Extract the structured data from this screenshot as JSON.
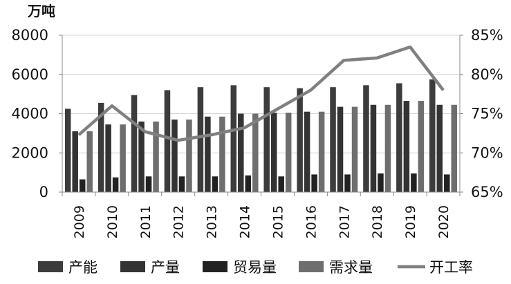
{
  "chart_data": {
    "type": "bar",
    "y_unit_label": "万吨",
    "categories": [
      "2009",
      "2010",
      "2011",
      "2012",
      "2013",
      "2014",
      "2015",
      "2016",
      "2017",
      "2018",
      "2019",
      "2020"
    ],
    "series": [
      {
        "name": "产能",
        "type": "bar",
        "axis": "left",
        "color": "#3c3c3c",
        "values": [
          4250,
          4550,
          4950,
          5200,
          5350,
          5450,
          5350,
          5300,
          5350,
          5450,
          5550,
          5750
        ]
      },
      {
        "name": "产量",
        "type": "bar",
        "axis": "left",
        "color": "#333333",
        "values": [
          3100,
          3450,
          3600,
          3700,
          3850,
          4000,
          4050,
          4100,
          4350,
          4450,
          4650,
          4450
        ]
      },
      {
        "name": "贸易量",
        "type": "bar",
        "axis": "left",
        "color": "#222222",
        "values": [
          650,
          750,
          800,
          800,
          800,
          850,
          800,
          900,
          900,
          950,
          950,
          900
        ]
      },
      {
        "name": "需求量",
        "type": "bar",
        "axis": "left",
        "color": "#6e6e6e",
        "values": [
          3100,
          3450,
          3600,
          3700,
          3850,
          4000,
          4050,
          4100,
          4350,
          4450,
          4650,
          4450
        ]
      },
      {
        "name": "开工率",
        "type": "line",
        "axis": "right",
        "color": "#808080",
        "values": [
          72.3,
          76.0,
          72.7,
          71.6,
          72.3,
          73.2,
          75.6,
          78.0,
          81.8,
          82.1,
          83.5,
          78.0
        ]
      }
    ],
    "y_left": {
      "min": 0,
      "max": 8000,
      "ticks": [
        0,
        2000,
        4000,
        6000,
        8000
      ],
      "tick_labels": [
        "0",
        "2000",
        "4000",
        "6000",
        "8000"
      ]
    },
    "y_right": {
      "min": 65,
      "max": 85,
      "ticks": [
        65,
        70,
        75,
        80,
        85
      ],
      "tick_labels": [
        "65%",
        "70%",
        "75%",
        "80%",
        "85%"
      ]
    },
    "legend_position": "bottom",
    "grid": true
  }
}
